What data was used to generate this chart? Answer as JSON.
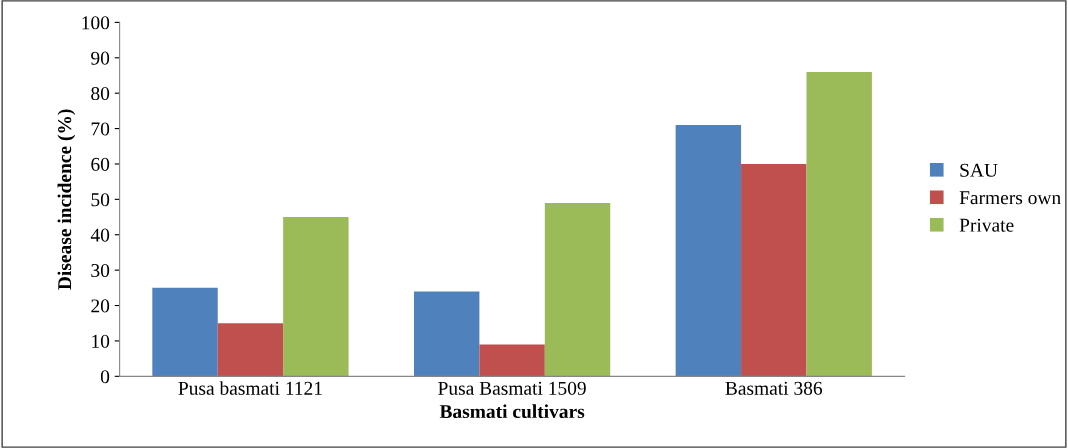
{
  "chart_data": {
    "type": "bar",
    "xlabel": "Basmati cultivars",
    "ylabel": "Disease incidence (%)",
    "categories": [
      "Pusa basmati 1121",
      "Pusa Basmati 1509",
      "Basmati 386"
    ],
    "series": [
      {
        "name": "SAU",
        "color": "#4f81bd",
        "values": [
          25,
          24,
          71
        ]
      },
      {
        "name": "Farmers own",
        "color": "#c0504d",
        "values": [
          15,
          9,
          60
        ]
      },
      {
        "name": "Private",
        "color": "#9bbb59",
        "values": [
          45,
          49,
          86
        ]
      }
    ],
    "ylim": [
      0,
      100
    ],
    "yticks": [
      0,
      10,
      20,
      30,
      40,
      50,
      60,
      70,
      80,
      90,
      100
    ],
    "grid": false,
    "legend": "right"
  }
}
